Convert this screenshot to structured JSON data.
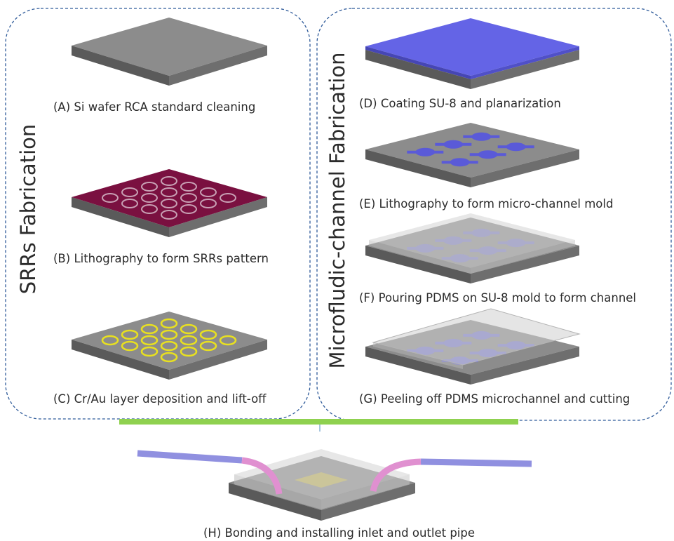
{
  "panels": {
    "left_title": "SRRs Fabrication",
    "right_title": "Microfludic-channel Fabrication"
  },
  "steps": {
    "A": "(A)  Si wafer RCA standard cleaning",
    "B": "(B)  Lithography to form SRRs pattern",
    "C": "(C)  Cr/Au layer deposition and lift-off",
    "D": "(D)  Coating SU-8 and planarization",
    "E": "(E)  Lithography to form micro-channel mold",
    "F": "(F)  Pouring PDMS on SU-8 mold to form channel",
    "G": "(G)  Peeling off PDMS microchannel and cutting",
    "H": "(H)  Bonding and installing inlet and outlet pipe"
  },
  "colors": {
    "frame_dash": "#2f5b9a",
    "connector": "#8fd14f",
    "wafer_top": "#8c8c8c",
    "wafer_front": "#5a5a5a",
    "wafer_side": "#6e6e6e",
    "su8_blue": "#6464e6",
    "resist_maroon": "#7a1040",
    "gold_ring": "#e8e020",
    "pdms": "#c8c8c8",
    "pipe_blue": "#9090e0",
    "pipe_pink": "#e090d0"
  }
}
